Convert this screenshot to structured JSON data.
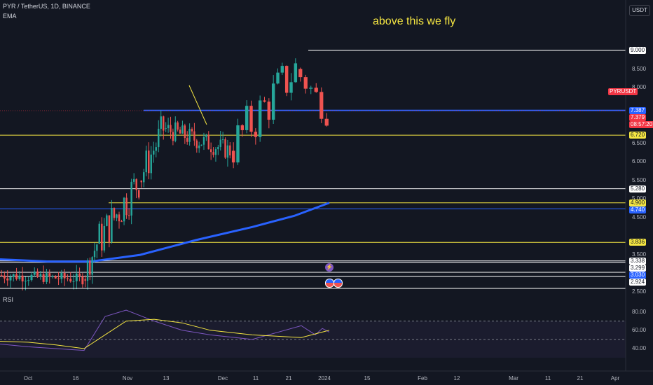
{
  "header": {
    "symbol_line": "PYR / TetherUS, 1D, BINANCE",
    "indicator": "EMA",
    "currency_button": "USDT"
  },
  "annotation": {
    "text": "above this we fly",
    "color": "#f5e642"
  },
  "rsi_panel": {
    "label": "RSI"
  },
  "price_axis": {
    "ticks": [
      "8.500",
      "8.000",
      "7.000",
      "6.500",
      "6.000",
      "5.500",
      "5.000",
      "4.500",
      "3.500",
      "2.500"
    ],
    "rsi_ticks": [
      "80.00",
      "60.00",
      "40.00"
    ]
  },
  "price_labels": [
    {
      "text": "9.000",
      "bg": "#ffffff",
      "fg": "#131722"
    },
    {
      "text": "7.387",
      "bg": "#2962ff",
      "fg": "#ffffff"
    },
    {
      "text": "7.379",
      "bg": "#f23645",
      "fg": "#ffffff"
    },
    {
      "text": "08:57:20",
      "bg": "#f23645",
      "fg": "#ffffff"
    },
    {
      "text": "6.720",
      "bg": "#f5e642",
      "fg": "#131722"
    },
    {
      "text": "5.280",
      "bg": "#ffffff",
      "fg": "#131722"
    },
    {
      "text": "4.900",
      "bg": "#f5e642",
      "fg": "#131722"
    },
    {
      "text": "4.740",
      "bg": "#2962ff",
      "fg": "#ffffff"
    },
    {
      "text": "3.836",
      "bg": "#f5e642",
      "fg": "#131722"
    },
    {
      "text": "3.338",
      "bg": "#ffffff",
      "fg": "#131722"
    },
    {
      "text": "3.299",
      "bg": "#ffffff",
      "fg": "#131722"
    },
    {
      "text": "3.030",
      "bg": "#2962ff",
      "fg": "#ffffff"
    },
    {
      "text": "2.924",
      "bg": "#ffffff",
      "fg": "#131722"
    }
  ],
  "symbol_tag": {
    "text": "PYRUSDT",
    "bg": "#f23645",
    "fg": "#ffffff"
  },
  "time_axis": [
    "Oct",
    "16",
    "Nov",
    "13",
    "Dec",
    "11",
    "21",
    "2024",
    "15",
    "Feb",
    "12",
    "Mar",
    "11",
    "21",
    "Apr"
  ],
  "colors": {
    "background": "#131722",
    "up": "#26a69a",
    "down": "#ef5350",
    "ema": "#2962ff",
    "rsi": "#7e57c2",
    "rsi_ma": "#f5e642",
    "level_yellow": "#f5e642",
    "level_white": "#ffffff",
    "level_blue": "#2962ff"
  },
  "icons": [
    "lightning-icon",
    "flag-icon-us",
    "flag-icon-us-2"
  ],
  "chart_data": {
    "type": "candlestick",
    "symbol": "PYRUSDT",
    "timeframe": "1D",
    "horizontal_levels": [
      9.0,
      7.387,
      6.72,
      5.28,
      4.9,
      4.74,
      3.836,
      3.338,
      3.299,
      3.03,
      2.924
    ],
    "last_price": 7.379,
    "phases": [
      {
        "period": "Oct",
        "open": 2.95,
        "close": 2.85
      },
      {
        "period": "late Oct",
        "open": 2.85,
        "close": 3.8
      },
      {
        "period": "early Nov",
        "open": 3.8,
        "close": 5.5
      },
      {
        "period": "mid Nov",
        "open": 5.5,
        "close": 6.9
      },
      {
        "period": "Dec",
        "open": 6.9,
        "close": 6.3
      },
      {
        "period": "late Dec",
        "open": 6.3,
        "close": 8.5
      },
      {
        "period": "early Jan",
        "open": 8.5,
        "close": 7.379
      }
    ],
    "ema_series": [
      3.38,
      3.32,
      3.32,
      3.5,
      3.9,
      4.25,
      4.55,
      4.9
    ],
    "rsi_series": [
      45,
      42,
      40,
      38,
      75,
      82,
      70,
      60,
      55,
      50,
      65,
      55,
      62,
      58
    ],
    "rsi_ylim": [
      30,
      90
    ]
  }
}
